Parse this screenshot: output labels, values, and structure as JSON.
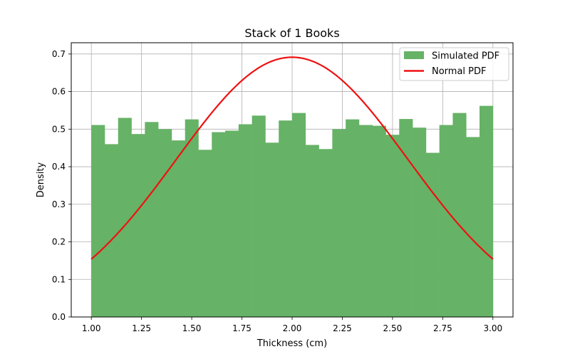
{
  "chart_data": {
    "type": "bar",
    "title": "Stack of 1 Books",
    "xlabel": "Thickness (cm)",
    "ylabel": "Density",
    "xlim": [
      0.9,
      3.1
    ],
    "ylim": [
      0.0,
      0.73
    ],
    "xticks": [
      "1.00",
      "1.25",
      "1.50",
      "1.75",
      "2.00",
      "2.25",
      "2.50",
      "2.75",
      "3.00"
    ],
    "xtick_values": [
      1.0,
      1.25,
      1.5,
      1.75,
      2.0,
      2.25,
      2.5,
      2.75,
      3.0
    ],
    "yticks": [
      "0.0",
      "0.1",
      "0.2",
      "0.3",
      "0.4",
      "0.5",
      "0.6",
      "0.7"
    ],
    "ytick_values": [
      0.0,
      0.1,
      0.2,
      0.3,
      0.4,
      0.5,
      0.6,
      0.7
    ],
    "grid": true,
    "legend_position": "top-right",
    "series": [
      {
        "name": "Simulated PDF",
        "kind": "histogram",
        "color": "#66b266",
        "bin_edges": [
          1.0,
          1.0667,
          1.1333,
          1.2,
          1.2667,
          1.3333,
          1.4,
          1.4667,
          1.5333,
          1.6,
          1.6667,
          1.7333,
          1.8,
          1.8667,
          1.9333,
          2.0,
          2.0667,
          2.1333,
          2.2,
          2.2667,
          2.3333,
          2.4,
          2.4667,
          2.5333,
          2.6,
          2.6667,
          2.7333,
          2.8,
          2.8667,
          2.9333,
          3.0
        ],
        "values": [
          0.511,
          0.46,
          0.53,
          0.487,
          0.519,
          0.5,
          0.47,
          0.526,
          0.445,
          0.492,
          0.496,
          0.513,
          0.536,
          0.464,
          0.523,
          0.543,
          0.458,
          0.447,
          0.5,
          0.526,
          0.511,
          0.509,
          0.485,
          0.527,
          0.504,
          0.437,
          0.511,
          0.543,
          0.479,
          0.562
        ]
      },
      {
        "name": "Normal PDF",
        "kind": "line",
        "color": "#ee1111",
        "function": "normal",
        "mean": 2.0,
        "std": 0.577,
        "x_range": [
          1.0,
          3.0
        ]
      }
    ]
  }
}
